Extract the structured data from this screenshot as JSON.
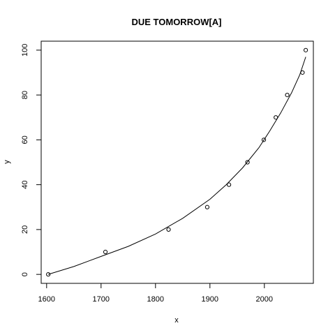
{
  "chart_data": {
    "type": "scatter",
    "title": "DUE TOMORROW[A]",
    "xlabel": "x",
    "ylabel": "y",
    "xlim": [
      1590,
      2090
    ],
    "ylim": [
      -4,
      104
    ],
    "x_ticks": [
      1600,
      1700,
      1800,
      1900,
      2000
    ],
    "y_ticks": [
      0,
      20,
      40,
      60,
      80,
      100
    ],
    "grid": false,
    "series": [
      {
        "x": [
          1603,
          1708,
          1824,
          1895,
          1935,
          1969,
          1999,
          2021,
          2042,
          2070,
          2076
        ],
        "y": [
          0,
          10,
          20,
          30,
          40,
          50,
          60,
          70,
          80,
          90,
          100
        ]
      }
    ],
    "fit_curve": {
      "x": [
        1603,
        1650,
        1700,
        1750,
        1800,
        1850,
        1900,
        1930,
        1960,
        1990,
        2010,
        2030,
        2050,
        2065,
        2076
      ],
      "y": [
        0,
        3.5,
        8,
        12.5,
        18,
        25,
        33.5,
        40,
        47.5,
        56.5,
        64,
        72,
        81,
        89,
        97
      ]
    }
  }
}
